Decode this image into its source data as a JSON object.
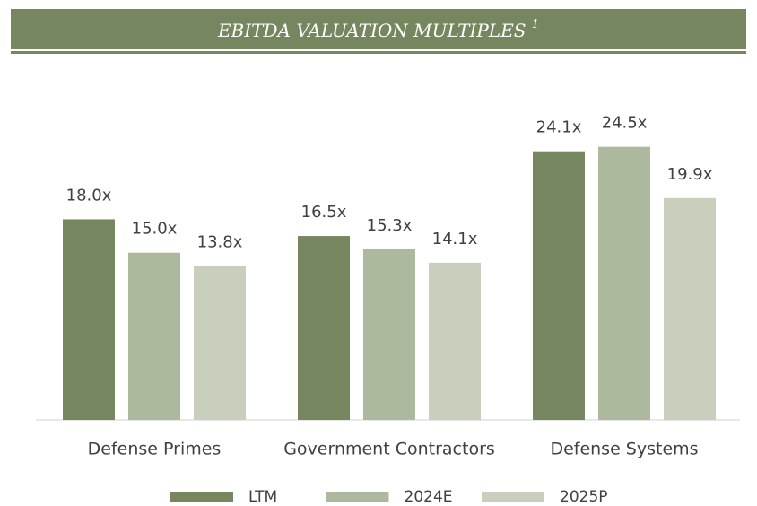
{
  "chart_data": {
    "type": "bar",
    "title": "EBITDA VALUATION MULTIPLES",
    "title_note": "1",
    "categories": [
      "Defense Primes",
      "Government Contractors",
      "Defense Systems"
    ],
    "series": [
      {
        "name": "LTM",
        "color": "#76865e",
        "values": [
          18.0,
          16.5,
          24.1
        ],
        "value_labels": [
          "18.0x",
          "16.5x",
          "24.1x"
        ]
      },
      {
        "name": "2024E",
        "color": "#adb99c",
        "values": [
          15.0,
          15.3,
          24.5
        ],
        "value_labels": [
          "15.0x",
          "15.3x",
          "24.5x"
        ]
      },
      {
        "name": "2025P",
        "color": "#c8cfbd",
        "values": [
          13.8,
          14.1,
          19.9
        ],
        "value_labels": [
          "13.8x",
          "14.1x",
          "19.9x"
        ]
      }
    ]
  }
}
